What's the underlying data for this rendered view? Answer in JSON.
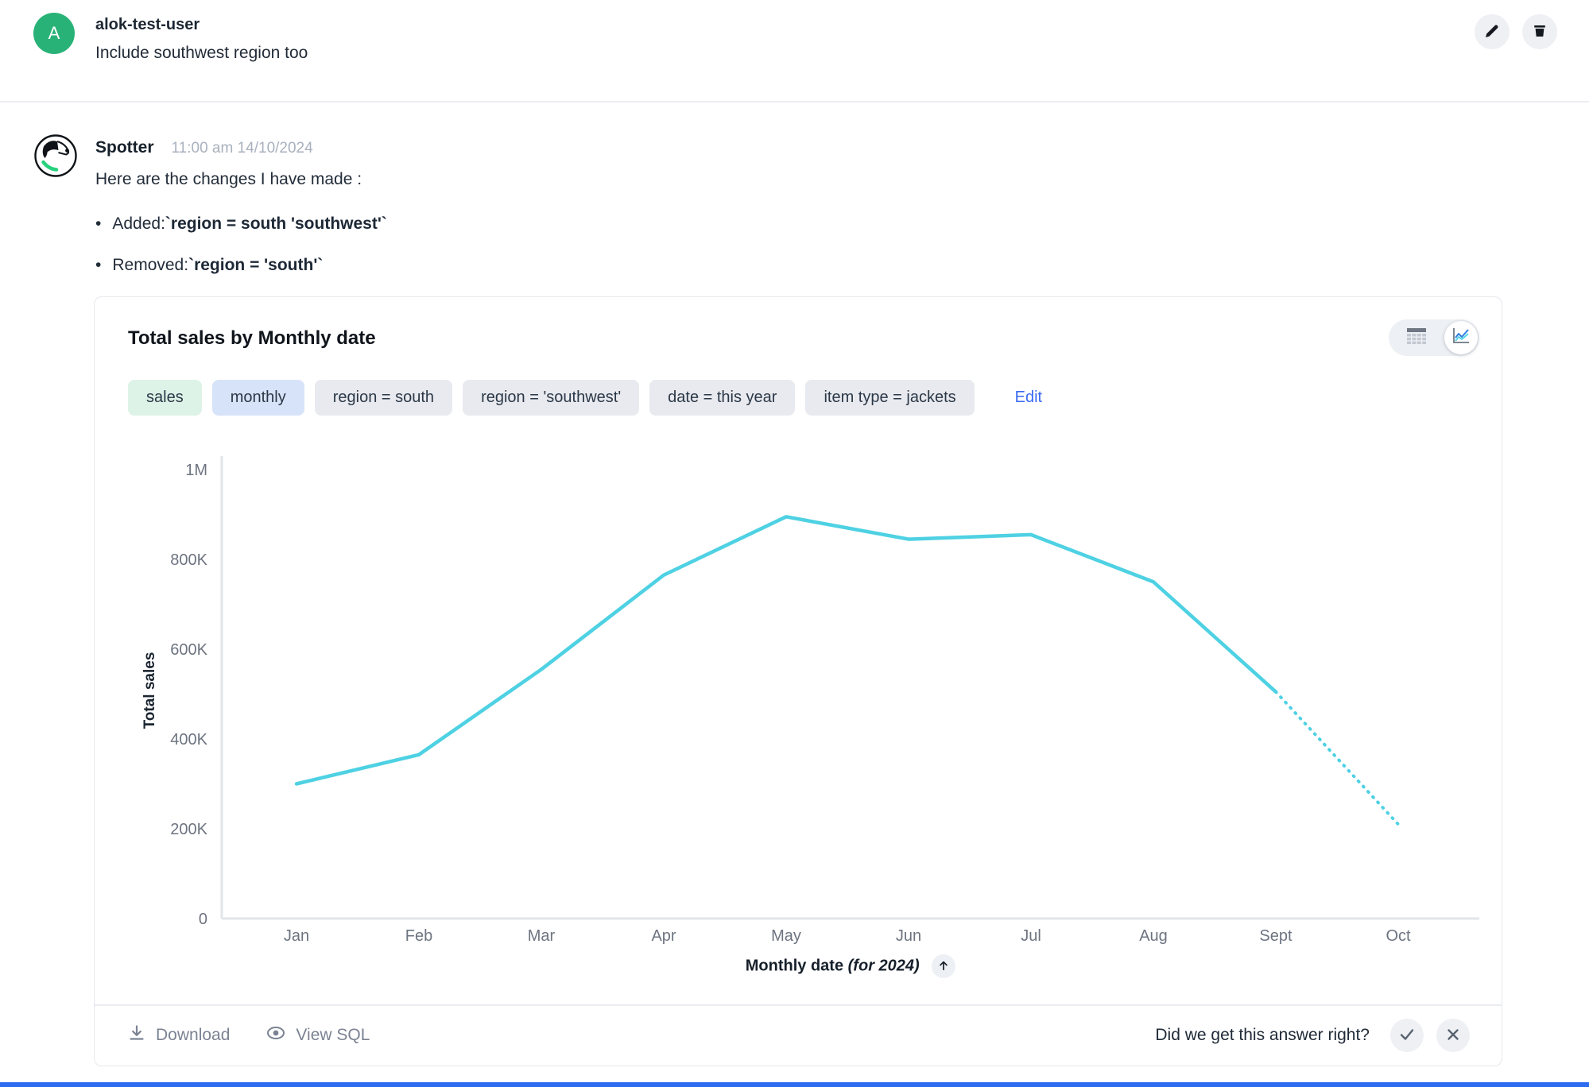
{
  "user_message": {
    "avatar_initial": "A",
    "username": "alok-test-user",
    "text": "Include southwest region too",
    "actions": [
      {
        "icon": "pencil-icon"
      },
      {
        "icon": "trash-icon"
      }
    ]
  },
  "bot_message": {
    "name": "Spotter",
    "timestamp": "11:00 am 14/10/2024",
    "intro": "Here are the changes I have made :",
    "bullets": [
      {
        "prefix": "Added: ",
        "code": "`region = south 'southwest'`"
      },
      {
        "prefix": "Removed: ",
        "code": "`region = 'south'`"
      }
    ]
  },
  "answer_card": {
    "title": "Total sales by Monthly date",
    "view_toggle": {
      "options": [
        "table",
        "chart"
      ],
      "active": "chart"
    },
    "chips": [
      {
        "label": "sales",
        "type": "measure"
      },
      {
        "label": "monthly",
        "type": "time"
      },
      {
        "label": "region = south",
        "type": "filter"
      },
      {
        "label": "region = 'southwest'",
        "type": "filter"
      },
      {
        "label": "date = this year",
        "type": "filter"
      },
      {
        "label": "item type = jackets",
        "type": "filter"
      }
    ],
    "edit_label": "Edit",
    "axis_title": {
      "bold": "Monthly date",
      "italic": " (for 2024)",
      "sort_icon": "arrow-up-icon"
    },
    "footer": {
      "download_label": "Download",
      "view_sql_label": "View SQL",
      "feedback_prompt": "Did we get this answer right?",
      "feedback_icons": [
        "check-icon",
        "close-icon"
      ]
    }
  },
  "chart_data": {
    "type": "line",
    "title": "Total sales by Monthly date",
    "x": [
      "Jan",
      "Feb",
      "Mar",
      "Apr",
      "May",
      "Jun",
      "Jul",
      "Aug",
      "Sept",
      "Oct"
    ],
    "series": [
      {
        "name": "Total sales",
        "values": [
          300000,
          365000,
          555000,
          765000,
          895000,
          845000,
          855000,
          750000,
          505000,
          210000
        ]
      }
    ],
    "dotted_from_index": 8,
    "xlabel": "Monthly date (for 2024)",
    "ylabel": "Total sales",
    "ylim": [
      0,
      1000000
    ],
    "yticks": [
      "1M",
      "800K",
      "600K",
      "400K",
      "200K",
      "0"
    ],
    "ytick_values": [
      1000000,
      800000,
      600000,
      400000,
      200000,
      0
    ],
    "grid": false,
    "legend": false,
    "line_color": "#4ed1e3"
  },
  "colors": {
    "accent_line": "#4ed1e3",
    "avatar_green": "#29b277",
    "chip_measure_bg": "#ddf3e7",
    "chip_time_bg": "#d7e3f8",
    "chip_filter_bg": "#e8eaef",
    "edit_link": "#3a6af2",
    "axis_gray": "#e3e5e9",
    "tick_text": "#6d7480",
    "bottom_bar_blue": "#2d6bf1"
  }
}
